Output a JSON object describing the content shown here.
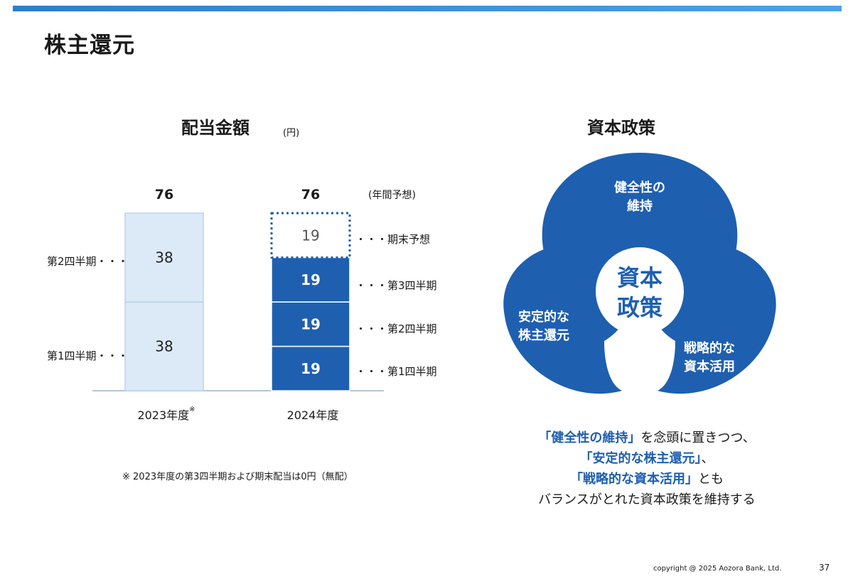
{
  "slide": {
    "title": "株主還元",
    "copyright": "copyright @ 2025 Aozora Bank, Ltd.",
    "page_number": "37",
    "accent_color": "#1e5fb0"
  },
  "dividend": {
    "title": "配当金額",
    "unit": "(円)",
    "annual_forecast_label": "(年間予想)",
    "note": "※ 2023年度の第3四半期および期末配当は0円（無配）",
    "left_labels": [
      "第2四半期・・・",
      "第1四半期・・・"
    ],
    "right_labels": [
      "・・・期末予想",
      "・・・第3四半期",
      "・・・第2四半期",
      "・・・第1四半期"
    ]
  },
  "chart_data": {
    "type": "bar",
    "stacked": true,
    "categories": [
      "2023年度",
      "2024年度"
    ],
    "category_note_marks": [
      "※",
      ""
    ],
    "totals": [
      "76",
      "76"
    ],
    "series": [
      {
        "name": "第1四半期",
        "values": [
          38,
          19
        ]
      },
      {
        "name": "第2四半期",
        "values": [
          38,
          19
        ]
      },
      {
        "name": "第3四半期",
        "values": [
          null,
          19
        ]
      },
      {
        "name": "期末予想",
        "values": [
          null,
          19
        ]
      }
    ],
    "colors": {
      "fy2023": "#dceaf7",
      "fy2024": "#1e5fb0",
      "forecast_border": "#1e5fb0"
    }
  },
  "policy": {
    "title": "資本政策",
    "center": [
      "資本",
      "政策"
    ],
    "petals": [
      {
        "lines": [
          "健全性の",
          "維持"
        ]
      },
      {
        "lines": [
          "安定的な",
          "株主還元"
        ]
      },
      {
        "lines": [
          "戦略的な",
          "資本活用"
        ]
      }
    ],
    "summary_line1_hl": "「健全性の維持」",
    "summary_line1_rest": "を念頭に置きつつ、",
    "summary_line2_hl": "「安定的な株主還元」",
    "summary_line2_rest": "、",
    "summary_line3_hl": "「戦略的な資本活用」",
    "summary_line3_rest": "とも",
    "summary_line4": "バランスがとれた資本政策を維持する"
  }
}
